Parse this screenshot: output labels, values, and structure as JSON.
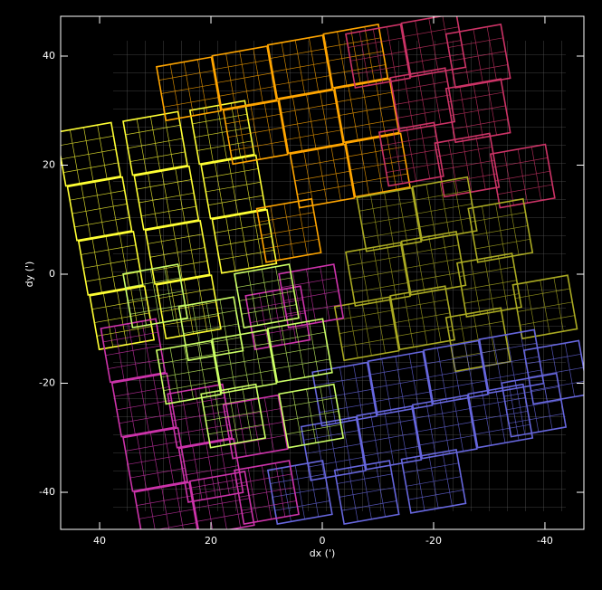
{
  "chart_data": {
    "type": "scatter",
    "marker": "square",
    "tile_size": 10,
    "angle": 10,
    "x_label": "dx (')",
    "y_label": "dy (')",
    "xlim": [
      47,
      -47
    ],
    "ylim": [
      -46.8,
      47.3
    ],
    "xticks": [
      40,
      20,
      0,
      -20,
      -40
    ],
    "yticks": [
      -40,
      -20,
      0,
      20,
      40
    ],
    "series": [
      {
        "color": "#ffff33",
        "x": [
          42,
          40,
          38,
          36,
          30,
          28,
          26,
          24,
          18,
          16,
          14
        ],
        "y": [
          22,
          12,
          2,
          -8,
          24,
          14,
          4,
          -6,
          26,
          16,
          6
        ]
      },
      {
        "color": "#ffa500",
        "x": [
          24,
          14,
          4,
          -6,
          12,
          2,
          -8,
          0,
          -10,
          6
        ],
        "y": [
          34,
          36,
          38,
          40,
          26,
          28,
          30,
          18,
          20,
          8
        ]
      },
      {
        "color": "#cc3366",
        "x": [
          -10,
          -20,
          -28,
          -18,
          -28,
          -26,
          -36,
          -16
        ],
        "y": [
          40,
          42,
          40,
          32,
          30,
          20,
          18,
          22
        ]
      },
      {
        "color": "#aaaa22",
        "x": [
          -12,
          -22,
          -32,
          -10,
          -20,
          -30,
          -40,
          -8,
          -18,
          -28
        ],
        "y": [
          10,
          12,
          8,
          0,
          2,
          -2,
          -6,
          -10,
          -8,
          -12
        ]
      },
      {
        "color": "#6666dd",
        "x": [
          -4,
          -14,
          -24,
          -34,
          -42,
          -2,
          -12,
          -22,
          -32,
          -38,
          4,
          -8,
          -20
        ],
        "y": [
          -22,
          -20,
          -18,
          -16,
          -18,
          -32,
          -30,
          -28,
          -26,
          -24,
          -40,
          -40,
          -38
        ]
      },
      {
        "color": "#cc33aa",
        "x": [
          34,
          32,
          30,
          28,
          20,
          18,
          10,
          22,
          12,
          8,
          2
        ],
        "y": [
          -14,
          -24,
          -34,
          -44,
          -36,
          -42,
          -40,
          -26,
          -28,
          -8,
          -4
        ]
      },
      {
        "color": "#ccff66",
        "x": [
          24,
          14,
          4,
          16,
          20,
          10,
          30,
          2
        ],
        "y": [
          -18,
          -16,
          -14,
          -26,
          -10,
          -4,
          -4,
          -26
        ]
      }
    ]
  }
}
